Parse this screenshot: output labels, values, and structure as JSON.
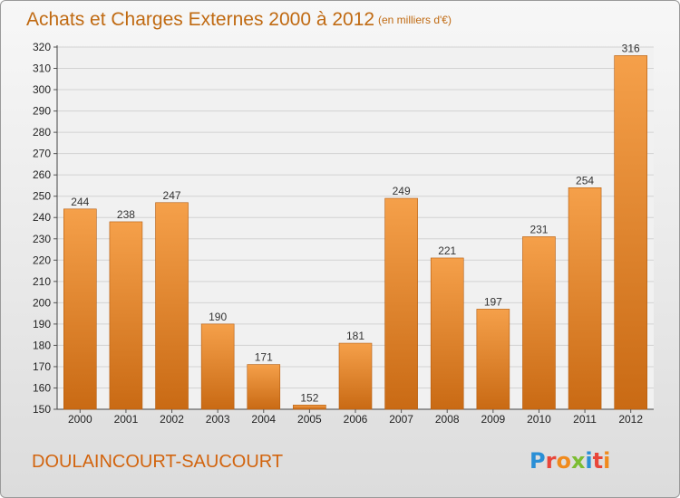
{
  "chart_data": {
    "type": "bar",
    "title": "Achats et Charges Externes 2000 à 2012",
    "unit_note": "(en milliers d'€)",
    "categories": [
      "2000",
      "2001",
      "2002",
      "2003",
      "2004",
      "2005",
      "2006",
      "2007",
      "2008",
      "2009",
      "2010",
      "2011",
      "2012"
    ],
    "values": [
      244,
      238,
      247,
      190,
      171,
      152,
      181,
      249,
      221,
      197,
      231,
      254,
      316
    ],
    "ylim": [
      150,
      320
    ],
    "yticks": [
      150,
      160,
      170,
      180,
      190,
      200,
      210,
      220,
      230,
      240,
      250,
      260,
      270,
      280,
      290,
      300,
      310,
      320
    ],
    "grid": true,
    "xlabel": "",
    "ylabel": "",
    "bar_color_light": "#f5a04a",
    "bar_color_dark": "#c96a14"
  },
  "footer": {
    "commune": "DOULAINCOURT-SAUCOURT",
    "logo_letters": [
      "P",
      "r",
      "o",
      "x",
      "i",
      "t",
      "i"
    ],
    "logo_colors": [
      "#2a8fd6",
      "#e8463a",
      "#f08a1c",
      "#7cbd32",
      "#2a8fd6",
      "#e8463a",
      "#f08a1c"
    ]
  }
}
